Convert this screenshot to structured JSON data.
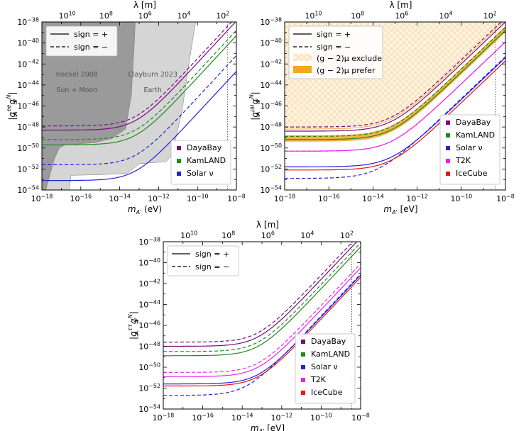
{
  "chart_data": [
    {
      "type": "line",
      "xlabel": "m_A' (eV)",
      "ylabel": "|g_A^ee g_V^N|",
      "x_top_label": "λ [m]",
      "xlim_log10": [
        -18,
        -8
      ],
      "ylim_log10": [
        -54,
        -38
      ],
      "x_ticks": [
        -18,
        -16,
        -14,
        -12,
        -10,
        -8
      ],
      "y_ticks": [
        -54,
        -52,
        -50,
        -48,
        -46,
        -44,
        -42,
        -40,
        -38
      ],
      "top_ticks": [
        10,
        8,
        6,
        4,
        2
      ],
      "sign_legend": {
        "plus": "sign = +",
        "minus": "sign = −"
      },
      "regions": [
        {
          "name": "Heckel 2008 Sun + Moon",
          "label1": "Heckel 2008",
          "label2": "Sun + Moon",
          "color": "#9a9a9a",
          "boundary": [
            [
              -17.8,
              -54
            ],
            [
              -17.35,
              -51
            ],
            [
              -17.1,
              -50
            ],
            [
              -16.8,
              -49.7
            ],
            [
              -15.3,
              -49.5
            ],
            [
              -14.4,
              -49.1
            ],
            [
              -13.7,
              -48.2
            ],
            [
              -13.4,
              -45
            ],
            [
              -13.25,
              -40
            ],
            [
              -13.2,
              -38
            ]
          ]
        },
        {
          "name": "Clayburn 2023 Earth",
          "label1": "Clayburn 2023",
          "label2": "Earth",
          "color": "#d0d0d0",
          "boundary": [
            [
              -16.6,
              -54
            ],
            [
              -16.5,
              -52.6
            ],
            [
              -15,
              -52.55
            ],
            [
              -13.6,
              -52.4
            ],
            [
              -13,
              -51.5
            ],
            [
              -11.6,
              -51.3
            ],
            [
              -11.3,
              -50.6
            ],
            [
              -10.8,
              -46.5
            ],
            [
              -10.4,
              -41.5
            ],
            [
              -10.1,
              -38
            ]
          ]
        }
      ],
      "series": [
        {
          "name": "DayaBay",
          "color": "#7a0c7a",
          "plus": -48.3,
          "minus": -47.9
        },
        {
          "name": "KamLAND",
          "color": "#1f8a1f",
          "plus": -49.7,
          "minus": -49.2
        },
        {
          "name": "Solar ν",
          "color": "#2222dd",
          "plus": -53.1,
          "minus": -51.6
        }
      ]
    },
    {
      "type": "line",
      "xlabel": "m_A' [eV]",
      "ylabel": "|g_A^μμ g_V^N|",
      "x_top_label": "λ [m]",
      "xlim_log10": [
        -18,
        -8
      ],
      "ylim_log10": [
        -54,
        -38
      ],
      "x_ticks": [
        -18,
        -16,
        -14,
        -12,
        -10,
        -8
      ],
      "y_ticks": [
        -54,
        -52,
        -50,
        -48,
        -46,
        -44,
        -42,
        -40,
        -38
      ],
      "top_ticks": [
        10,
        8,
        6,
        4,
        2
      ],
      "sign_legend": {
        "plus": "sign = +",
        "minus": "sign = −"
      },
      "gm2": {
        "exclude_label": "(g − 2)μ exclude",
        "prefer_label": "(g − 2)μ prefer",
        "color": "#f5a623",
        "exclude_floor": -48.2,
        "prefer_band": [
          -49.4,
          -48.8
        ]
      },
      "series": [
        {
          "name": "DayaBay",
          "color": "#7a0c7a",
          "plus": -48.4,
          "minus": -48.0
        },
        {
          "name": "KamLAND",
          "color": "#1f8a1f",
          "plus": -49.2,
          "minus": -48.9
        },
        {
          "name": "Solar ν",
          "color": "#2222dd",
          "plus": -51.8,
          "minus": -52.9
        },
        {
          "name": "T2K",
          "color": "#ee22ee",
          "plus": -50.3,
          "minus": -50.3
        },
        {
          "name": "IceCube",
          "color": "#ee1111",
          "plus": -52.1,
          "minus": null
        }
      ]
    },
    {
      "type": "line",
      "xlabel": "m_A' [eV]",
      "ylabel": "|g_A^ττ g_V^N|",
      "x_top_label": "λ [m]",
      "xlim_log10": [
        -18,
        -8
      ],
      "ylim_log10": [
        -54,
        -38
      ],
      "x_ticks": [
        -18,
        -16,
        -14,
        -12,
        -10,
        -8
      ],
      "y_ticks": [
        -54,
        -52,
        -50,
        -48,
        -46,
        -44,
        -42,
        -40,
        -38
      ],
      "top_ticks": [
        10,
        8,
        6,
        4,
        2
      ],
      "sign_legend": {
        "plus": "sign = +",
        "minus": "sign = −"
      },
      "series": [
        {
          "name": "DayaBay",
          "color": "#7a0c7a",
          "plus": -48.0,
          "minus": -47.6
        },
        {
          "name": "KamLAND",
          "color": "#1f8a1f",
          "plus": -48.9,
          "minus": -48.5
        },
        {
          "name": "Solar ν",
          "color": "#2222dd",
          "plus": -51.6,
          "minus": -52.7
        },
        {
          "name": "T2K",
          "color": "#ee22ee",
          "plus": -50.9,
          "minus": -50.5
        },
        {
          "name": "IceCube",
          "color": "#ee1111",
          "plus": -51.8,
          "minus": null
        }
      ]
    }
  ]
}
